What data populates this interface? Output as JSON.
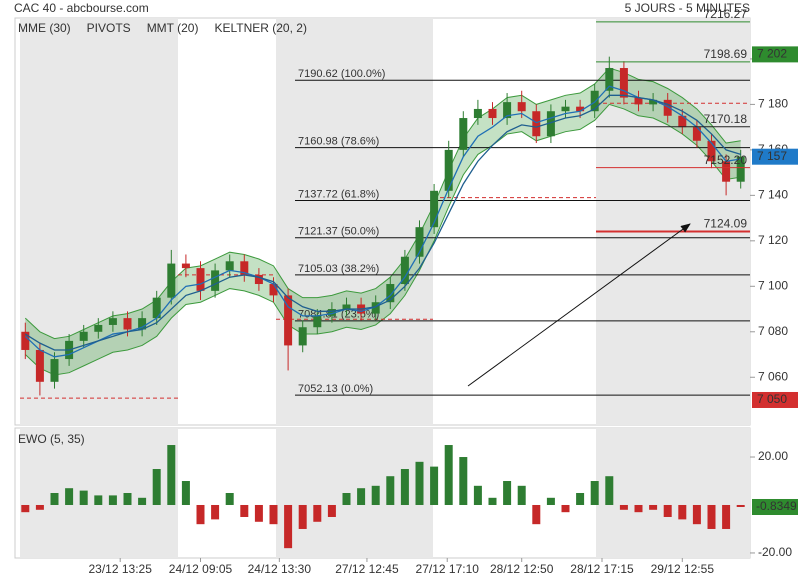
{
  "chart_data": {
    "type": "candlestick",
    "title": "CAC 40 - abcbourse.com",
    "subtitle": "5 JOURS - 5 MINUTES",
    "indicators": [
      {
        "name": "MME (30)",
        "color": "#1f6fb5"
      },
      {
        "name": "PIVOTS",
        "color": "#444444"
      },
      {
        "name": "MMT (20)",
        "color": "#1f6fb5"
      },
      {
        "name": "KELTNER (20, 2)",
        "color": "#3d9a3d"
      }
    ],
    "xlim": [
      -0.5,
      49.5
    ],
    "xticks": [
      {
        "value": 6.5,
        "label": "23/12 13:25"
      },
      {
        "value": 12,
        "label": "24/12 09:05"
      },
      {
        "value": 17.4,
        "label": "24/12 13:30"
      },
      {
        "value": 23.4,
        "label": "27/12 12:45"
      },
      {
        "value": 28.9,
        "label": "27/12 17:10"
      },
      {
        "value": 34,
        "label": "28/12 12:50"
      },
      {
        "value": 39.5,
        "label": "28/12 17:15"
      },
      {
        "value": 45,
        "label": "29/12 12:55"
      }
    ],
    "ylim": [
      7039,
      7218
    ],
    "yticks": [
      {
        "value": 7060,
        "label": "7 060"
      },
      {
        "value": 7080,
        "label": "7 080"
      },
      {
        "value": 7100,
        "label": "7 100"
      },
      {
        "value": 7120,
        "label": "7 120"
      },
      {
        "value": 7140,
        "label": "7 140"
      },
      {
        "value": 7160,
        "label": "7 160"
      },
      {
        "value": 7180,
        "label": "7 180"
      },
      {
        "value": 7200,
        "label": "7 200"
      }
    ],
    "up_color": "#2e7d32",
    "down_color": "#c62828",
    "open": [
      7080,
      7072,
      7058,
      7068,
      7076,
      7080,
      7083,
      7086,
      7081,
      7086,
      7095,
      7110,
      7108,
      7098,
      7107,
      7111,
      7105,
      7101,
      7096,
      7074,
      7082,
      7087,
      7090,
      7092,
      7088,
      7093,
      7101,
      7113,
      7126,
      7142,
      7160,
      7174,
      7178,
      7174,
      7181,
      7177,
      7166,
      7177,
      7179,
      7177,
      7186,
      7196,
      7183,
      7180,
      7182,
      7175,
      7170,
      7164,
      7155,
      7146
    ],
    "high": [
      7084,
      7075,
      7071,
      7079,
      7083,
      7086,
      7089,
      7089,
      7089,
      7098,
      7116,
      7114,
      7111,
      7110,
      7114,
      7114,
      7108,
      7104,
      7099,
      7085,
      7090,
      7093,
      7095,
      7095,
      7096,
      7104,
      7116,
      7129,
      7145,
      7164,
      7177,
      7182,
      7181,
      7185,
      7186,
      7180,
      7180,
      7182,
      7182,
      7189,
      7201,
      7199,
      7186,
      7185,
      7185,
      7178,
      7173,
      7167,
      7158,
      7160
    ],
    "low": [
      7068,
      7052,
      7055,
      7065,
      7073,
      7077,
      7080,
      7078,
      7078,
      7083,
      7092,
      7104,
      7094,
      7095,
      7104,
      7102,
      7098,
      7093,
      7063,
      7071,
      7079,
      7084,
      7087,
      7085,
      7085,
      7090,
      7098,
      7110,
      7123,
      7139,
      7157,
      7171,
      7171,
      7171,
      7174,
      7163,
      7163,
      7174,
      7174,
      7174,
      7183,
      7180,
      7177,
      7177,
      7172,
      7167,
      7161,
      7152,
      7140,
      7143
    ],
    "close": [
      7072,
      7058,
      7068,
      7076,
      7080,
      7083,
      7086,
      7081,
      7086,
      7095,
      7110,
      7108,
      7098,
      7107,
      7111,
      7105,
      7101,
      7096,
      7074,
      7082,
      7087,
      7090,
      7092,
      7088,
      7093,
      7101,
      7113,
      7126,
      7142,
      7160,
      7174,
      7178,
      7174,
      7181,
      7177,
      7166,
      7177,
      7179,
      7177,
      7186,
      7196,
      7183,
      7180,
      7182,
      7175,
      7170,
      7164,
      7155,
      7146,
      7157
    ],
    "series": [
      {
        "name": "MMT (20)",
        "color": "#1f6fb5",
        "values": [
          7078,
          7072,
          7069,
          7070,
          7073,
          7076,
          7079,
          7080,
          7082,
          7086,
          7094,
          7100,
          7101,
          7104,
          7107,
          7106,
          7104,
          7101,
          7091,
          7087,
          7087,
          7088,
          7090,
          7089,
          7091,
          7096,
          7104,
          7115,
          7128,
          7143,
          7157,
          7166,
          7170,
          7175,
          7176,
          7172,
          7174,
          7176,
          7177,
          7181,
          7188,
          7186,
          7183,
          7182,
          7179,
          7175,
          7170,
          7163,
          7155,
          7156
        ]
      },
      {
        "name": "MME (30)",
        "color": "#1f5f8f",
        "values": [
          7079,
          7075,
          7072,
          7072,
          7074,
          7076,
          7078,
          7080,
          7081,
          7084,
          7090,
          7096,
          7098,
          7101,
          7104,
          7105,
          7104,
          7102,
          7095,
          7091,
          7089,
          7089,
          7090,
          7090,
          7091,
          7094,
          7100,
          7108,
          7119,
          7132,
          7145,
          7155,
          7162,
          7168,
          7171,
          7170,
          7172,
          7174,
          7175,
          7178,
          7184,
          7184,
          7183,
          7182,
          7180,
          7177,
          7173,
          7167,
          7160,
          7158
        ]
      }
    ],
    "keltner_upper": [
      7086,
      7080,
      7077,
      7078,
      7081,
      7084,
      7087,
      7088,
      7090,
      7094,
      7102,
      7108,
      7109,
      7112,
      7115,
      7114,
      7112,
      7109,
      7099,
      7095,
      7095,
      7096,
      7098,
      7097,
      7099,
      7104,
      7112,
      7123,
      7136,
      7151,
      7165,
      7174,
      7178,
      7183,
      7184,
      7180,
      7182,
      7184,
      7185,
      7189,
      7196,
      7194,
      7191,
      7190,
      7187,
      7183,
      7178,
      7171,
      7163,
      7164
    ],
    "keltner_lower": [
      7070,
      7064,
      7061,
      7062,
      7065,
      7068,
      7071,
      7072,
      7074,
      7078,
      7086,
      7092,
      7093,
      7096,
      7099,
      7098,
      7096,
      7093,
      7083,
      7079,
      7079,
      7080,
      7082,
      7081,
      7083,
      7088,
      7096,
      7107,
      7120,
      7135,
      7149,
      7158,
      7162,
      7167,
      7168,
      7164,
      7166,
      7168,
      7169,
      7173,
      7180,
      7178,
      7175,
      7174,
      7171,
      7167,
      7162,
      7155,
      7147,
      7148
    ],
    "keltner_color": "#3d9a3d",
    "pivots": [
      7180.5,
      7139,
      7105,
      7085.5,
      7050.8
    ],
    "pivot_color": "#d32f2f",
    "fibonacci": [
      {
        "value": 7190.62,
        "label": "7190.62 (100.0%)"
      },
      {
        "value": 7160.98,
        "label": "7160.98 (78.6%)"
      },
      {
        "value": 7137.72,
        "label": "7137.72 (61.8%)"
      },
      {
        "value": 7121.37,
        "label": "7121.37 (50.0%)"
      },
      {
        "value": 7105.03,
        "label": "7105.03 (38.2%)"
      },
      {
        "value": 7084.81,
        "label": "7084.81 (23.6%)"
      },
      {
        "value": 7052.13,
        "label": "7052.13 (0.0%)"
      }
    ],
    "levels": [
      {
        "value": 7216.27,
        "color": "#2e8b2e"
      },
      {
        "value": 7198.69,
        "color": "#2e8b2e"
      },
      {
        "value": 7170.18,
        "color": "#222222"
      },
      {
        "value": 7152.2,
        "label": "7152.20",
        "color": "#d32f2f"
      },
      {
        "value": 7124.09,
        "color": "#d32f2f"
      }
    ],
    "badges": [
      {
        "value": 7202,
        "label": "7 202",
        "color": "#2e8b2e"
      },
      {
        "value": 7157,
        "label": "7 157",
        "color": "#1f7ac8"
      },
      {
        "value": 7050,
        "label": "7 050",
        "color": "#d32f2f"
      }
    ],
    "ewo": {
      "name": "EWO (5, 35)",
      "ylim": [
        -22.1,
        32.1
      ],
      "yticks": [
        {
          "value": 20,
          "label": "20.00"
        },
        {
          "value": -20,
          "label": "-20.00"
        }
      ],
      "values": [
        -3,
        -2,
        5,
        7,
        6,
        4,
        4,
        5,
        3,
        15,
        25,
        10,
        -8,
        -6,
        5,
        -5,
        -7,
        -8,
        -18,
        -10,
        -7,
        -5,
        5,
        7,
        8,
        12,
        15,
        18,
        16,
        25,
        20,
        8,
        3,
        10,
        8,
        -8,
        3,
        -3,
        5,
        10,
        12,
        -2,
        -3,
        -2,
        -5,
        -6,
        -8,
        -10,
        -10,
        -0.8349
      ],
      "badge_color": "#2e8b2e"
    }
  }
}
